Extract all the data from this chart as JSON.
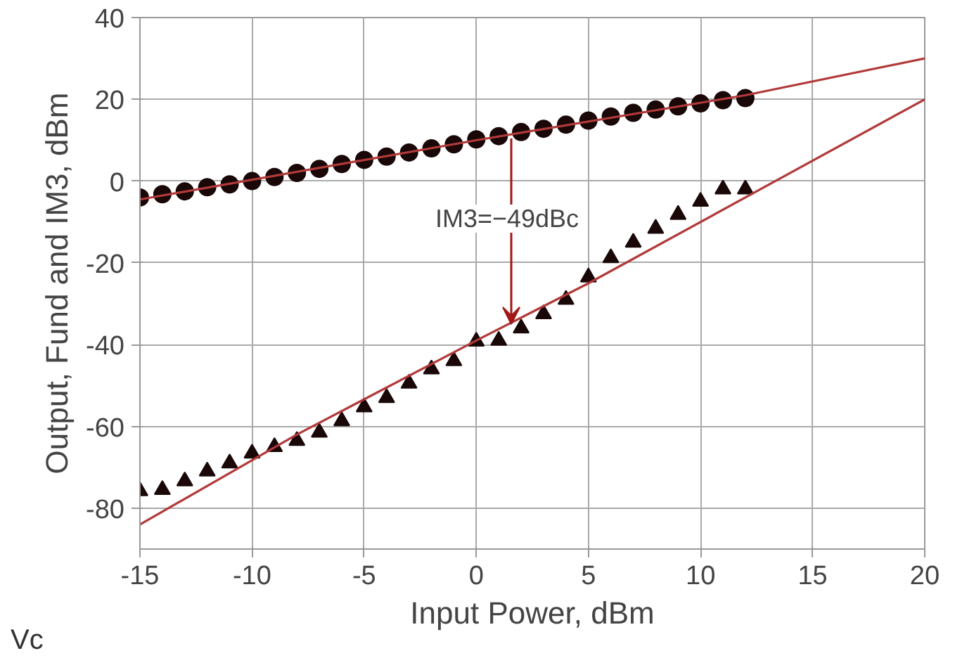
{
  "chart_data": {
    "type": "scatter",
    "xlabel": "Input Power, dBm",
    "ylabel": "Output, Fund and IM3, dBm",
    "xlim": [
      -15,
      20
    ],
    "ylim": [
      -90,
      40
    ],
    "xticks": [
      -15,
      -10,
      -5,
      0,
      5,
      10,
      15,
      20
    ],
    "yticks": [
      -80,
      -60,
      -40,
      -20,
      0,
      20,
      40
    ],
    "grid": true,
    "series": [
      {
        "marker": "circle",
        "color": "#1a0808",
        "x": [
          -15,
          -14,
          -13,
          -12,
          -11,
          -10,
          -9,
          -8,
          -7,
          -6,
          -5,
          -4,
          -3,
          -2,
          -1,
          0,
          1,
          2,
          3,
          4,
          5,
          6,
          7,
          8,
          9,
          10,
          11,
          12
        ],
        "values": [
          -4,
          -3.2,
          -2.5,
          -1.5,
          -0.8,
          0,
          1,
          2,
          3,
          4.2,
          5.2,
          6,
          7,
          8,
          9,
          10.2,
          11,
          12,
          12.8,
          13.8,
          14.8,
          15.8,
          16.7,
          17.5,
          18.3,
          19,
          19.8,
          20.3
        ]
      },
      {
        "type": "line",
        "line_style": "solid",
        "color": "#b23a3a",
        "x": [
          -15,
          0,
          12,
          20
        ],
        "values": [
          -4.5,
          10,
          21,
          30
        ]
      },
      {
        "marker": "triangle",
        "color": "#1a0808",
        "x": [
          -15,
          -14,
          -13,
          -12,
          -11,
          -10,
          -9,
          -8,
          -7,
          -6,
          -5,
          -4,
          -3,
          -2,
          -1,
          0,
          1,
          2,
          3,
          4,
          5,
          6,
          7,
          8,
          9,
          10,
          11,
          12
        ],
        "values": [
          -75.8,
          -75.5,
          -73.4,
          -71,
          -69,
          -66.6,
          -65,
          -63.5,
          -61.5,
          -58.7,
          -55.3,
          -53,
          -49.5,
          -46,
          -44,
          -39.2,
          -39,
          -36,
          -32.5,
          -29,
          -23.5,
          -18.8,
          -15,
          -11.6,
          -8.2,
          -5,
          -2,
          -2
        ]
      },
      {
        "type": "line",
        "line_style": "solid",
        "color": "#b23a3a",
        "x": [
          -15,
          -8,
          0,
          5,
          20
        ],
        "values": [
          -84,
          -62,
          -39,
          -25,
          20
        ]
      }
    ],
    "annotations": [
      "IM3=−49dBc",
      "Vc"
    ]
  }
}
